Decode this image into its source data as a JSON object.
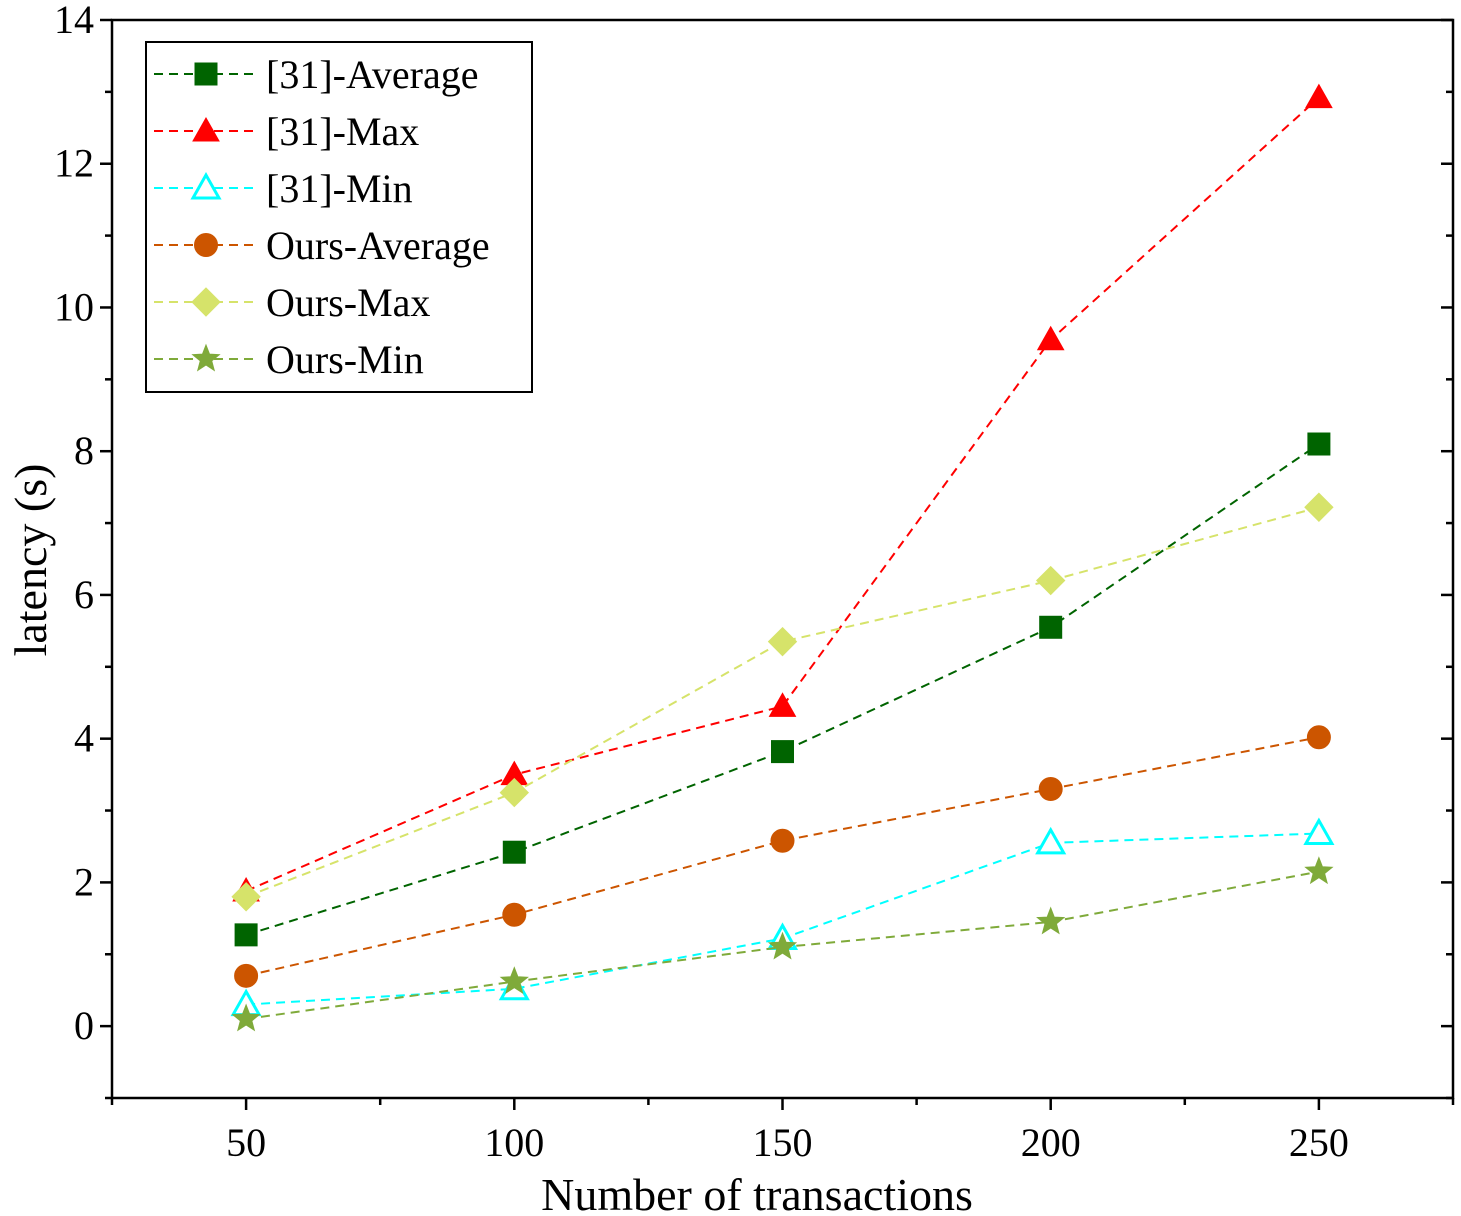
{
  "chart_data": {
    "type": "line",
    "title": "",
    "xlabel": "Number of transactions",
    "ylabel": "latency (s)",
    "xlim": [
      25,
      275
    ],
    "ylim": [
      -1,
      14
    ],
    "x": [
      50,
      100,
      150,
      200,
      250
    ],
    "xticks": [
      50,
      100,
      150,
      200,
      250
    ],
    "yticks": [
      0,
      2,
      4,
      6,
      8,
      10,
      12,
      14
    ],
    "legend_position": "top-left",
    "grid": false,
    "series": [
      {
        "name": "[31]-Average",
        "color": "#006400",
        "marker": "square",
        "values": [
          1.27,
          2.42,
          3.82,
          5.55,
          8.1
        ]
      },
      {
        "name": "[31]-Max",
        "color": "#ff0000",
        "marker": "triangle",
        "values": [
          1.88,
          3.5,
          4.45,
          9.55,
          12.92
        ]
      },
      {
        "name": "[31]-Min",
        "color": "#00ffff",
        "marker": "triangle-open",
        "values": [
          0.3,
          0.52,
          1.22,
          2.55,
          2.68
        ]
      },
      {
        "name": "Ours-Average",
        "color": "#cc5500",
        "marker": "circle",
        "values": [
          0.7,
          1.55,
          2.58,
          3.3,
          4.02
        ]
      },
      {
        "name": "Ours-Max",
        "color": "#d6e36a",
        "marker": "diamond",
        "values": [
          1.8,
          3.25,
          5.35,
          6.2,
          7.22
        ]
      },
      {
        "name": "Ours-Min",
        "color": "#7faa3a",
        "marker": "star",
        "values": [
          0.1,
          0.62,
          1.1,
          1.45,
          2.15
        ]
      }
    ]
  }
}
